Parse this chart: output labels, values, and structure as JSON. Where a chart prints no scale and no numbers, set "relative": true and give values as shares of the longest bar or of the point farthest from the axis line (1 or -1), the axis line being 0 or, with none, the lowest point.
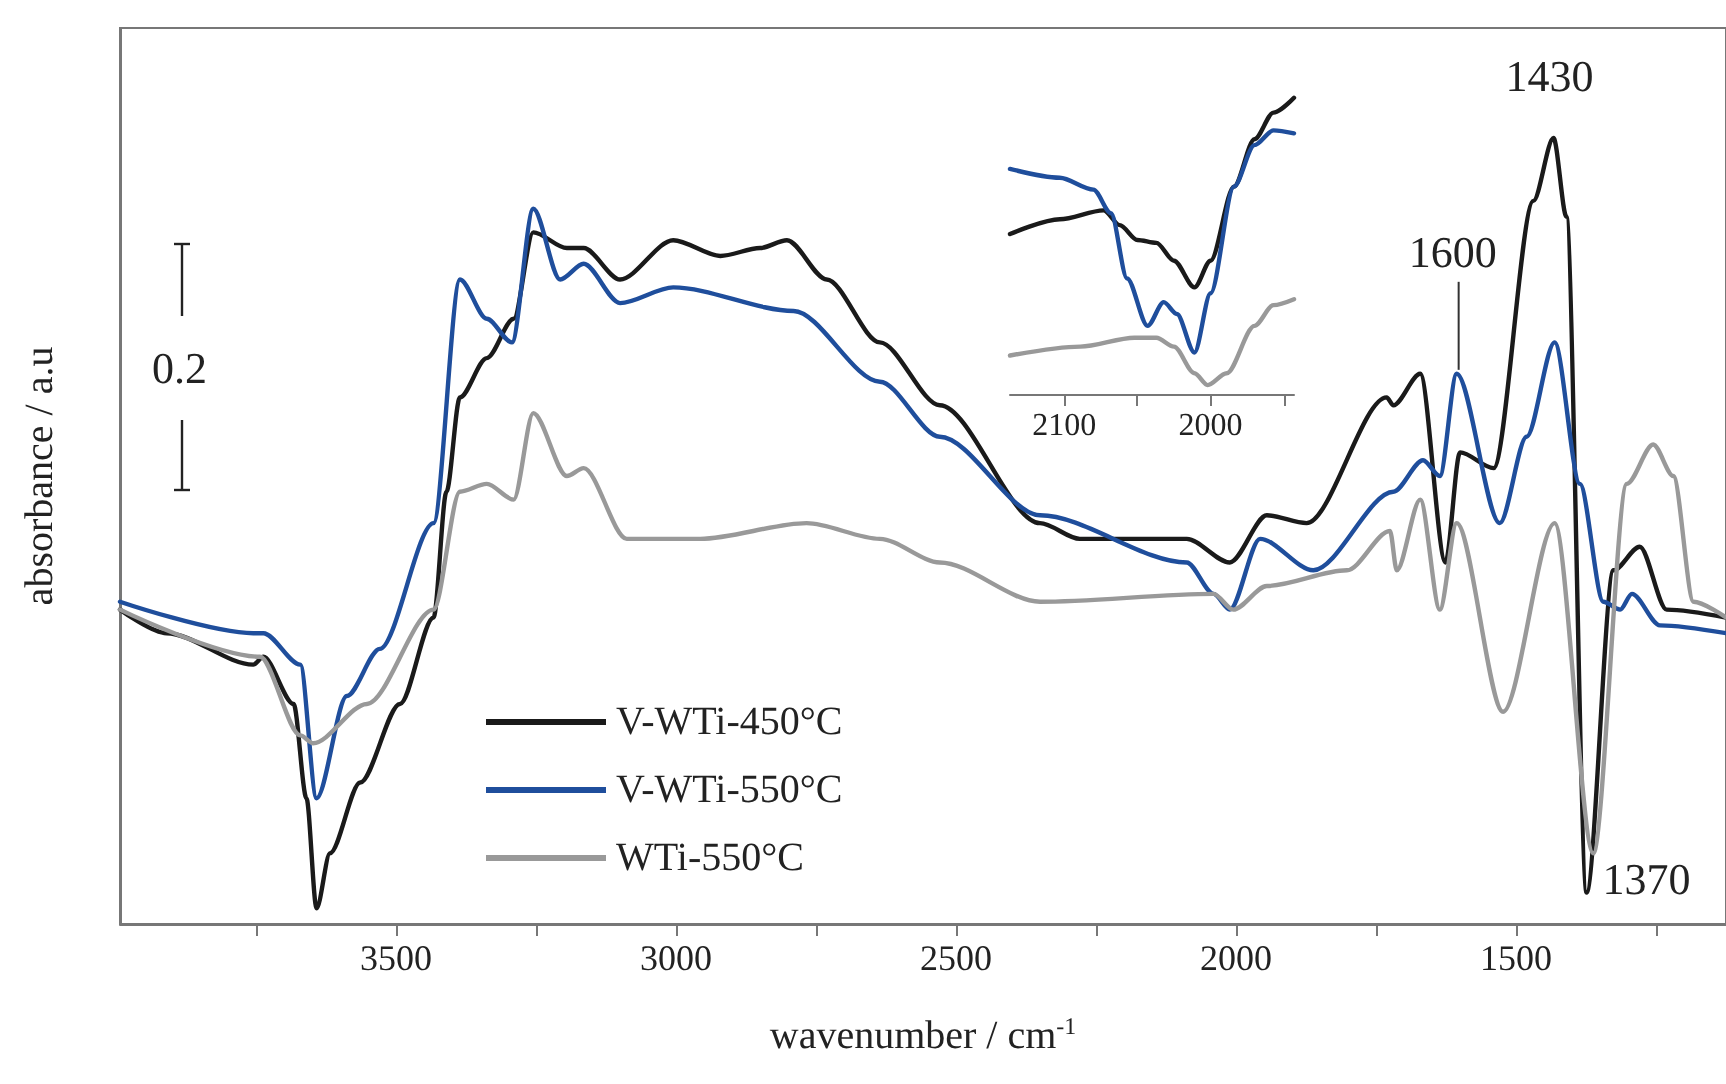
{
  "chart_data": [
    {
      "type": "line",
      "relative": true,
      "xlabel": "wavenumber / cm$^{-1}$",
      "ylabel": "absorbance / a.u",
      "xlim": [
        3993,
        1125
      ],
      "xticks": [
        {
          "value": 3750,
          "label": null
        },
        3500,
        {
          "value": 3250,
          "label": null
        },
        3000,
        {
          "value": 2750,
          "label": null
        },
        2500,
        {
          "value": 2250,
          "label": null
        },
        2000,
        {
          "value": 1750,
          "label": null
        },
        1500,
        {
          "value": 1250,
          "label": null
        }
      ],
      "tick_labels": "x",
      "grid": false,
      "legend": "bottom",
      "marker": "none",
      "line_style": "solid",
      "annotations": [
        "0.2",
        {
          "text": "1430",
          "x": 1433,
          "y": 1.0
        },
        {
          "text": "1600",
          "x": 1606,
          "y": 0.7
        },
        {
          "text": "1370",
          "x": 1374,
          "y": 0.04
        }
      ],
      "series": [
        {
          "name": "V-WTi-450°C",
          "color": "#1a1a1a",
          "x": [
            3993,
            3910,
            3755,
            3737,
            3683,
            3660,
            3642,
            3618,
            3564,
            3493,
            3433,
            3410,
            3386,
            3338,
            3290,
            3255,
            3195,
            3165,
            3100,
            3005,
            2921,
            2850,
            2802,
            2731,
            2636,
            2529,
            2350,
            2279,
            2088,
            2011,
            1945,
            1874,
            1731,
            1719,
            1671,
            1626,
            1600,
            1540,
            1469,
            1433,
            1410,
            1374,
            1326,
            1279,
            1231,
            1125
          ],
          "values": [
            0.4,
            0.37,
            0.33,
            0.34,
            0.28,
            0.16,
            0.02,
            0.09,
            0.18,
            0.28,
            0.39,
            0.55,
            0.67,
            0.72,
            0.77,
            0.88,
            0.86,
            0.86,
            0.82,
            0.87,
            0.85,
            0.86,
            0.87,
            0.82,
            0.74,
            0.66,
            0.51,
            0.49,
            0.49,
            0.46,
            0.52,
            0.51,
            0.67,
            0.66,
            0.7,
            0.46,
            0.6,
            0.58,
            0.92,
            1.0,
            0.9,
            0.04,
            0.45,
            0.48,
            0.4,
            0.39
          ]
        },
        {
          "name": "V-WTi-550°C",
          "color": "#1f4e9c",
          "x": [
            3993,
            3755,
            3737,
            3671,
            3642,
            3588,
            3529,
            3433,
            3386,
            3338,
            3293,
            3255,
            3207,
            3165,
            3100,
            3005,
            2790,
            2636,
            2529,
            2350,
            2088,
            2040,
            2011,
            1957,
            1862,
            1719,
            1666,
            1636,
            1606,
            1529,
            1481,
            1431,
            1386,
            1344,
            1314,
            1293,
            1243,
            1125
          ],
          "values": [
            0.41,
            0.37,
            0.37,
            0.33,
            0.16,
            0.29,
            0.35,
            0.51,
            0.82,
            0.77,
            0.74,
            0.91,
            0.82,
            0.84,
            0.79,
            0.81,
            0.78,
            0.69,
            0.62,
            0.52,
            0.46,
            0.42,
            0.4,
            0.49,
            0.45,
            0.55,
            0.59,
            0.57,
            0.7,
            0.51,
            0.62,
            0.74,
            0.56,
            0.41,
            0.4,
            0.42,
            0.38,
            0.37
          ]
        },
        {
          "name": "WTi-550°C",
          "color": "#999999",
          "x": [
            3993,
            3743,
            3671,
            3648,
            3552,
            3433,
            3386,
            3338,
            3290,
            3255,
            3195,
            3165,
            3088,
            2957,
            2767,
            2636,
            2529,
            2350,
            2040,
            2005,
            1945,
            1802,
            1725,
            1713,
            1671,
            1636,
            1606,
            1523,
            1431,
            1362,
            1302,
            1255,
            1219,
            1183,
            1125
          ],
          "values": [
            0.4,
            0.34,
            0.24,
            0.23,
            0.28,
            0.4,
            0.55,
            0.56,
            0.54,
            0.65,
            0.57,
            0.58,
            0.49,
            0.49,
            0.51,
            0.49,
            0.46,
            0.41,
            0.42,
            0.4,
            0.43,
            0.45,
            0.5,
            0.45,
            0.54,
            0.4,
            0.51,
            0.27,
            0.51,
            0.09,
            0.56,
            0.61,
            0.57,
            0.41,
            0.39
          ]
        }
      ]
    },
    {
      "type": "line",
      "relative": true,
      "xlim": [
        2137,
        1943
      ],
      "xticks": [
        2100,
        {
          "value": 2050,
          "label": null
        },
        2000,
        {
          "value": 1950,
          "label": null
        }
      ],
      "tick_labels": "x",
      "grid": false,
      "legend": false,
      "marker": "none",
      "line_style": "solid",
      "series": [
        {
          "color": "#1a1a1a",
          "x": [
            2137,
            2103,
            2073,
            2062,
            2050,
            2037,
            2025,
            2011,
            2000,
            1984,
            1970,
            1957,
            1943
          ],
          "values": [
            0.54,
            0.59,
            0.62,
            0.57,
            0.52,
            0.51,
            0.45,
            0.36,
            0.45,
            0.7,
            0.86,
            0.95,
            1.0
          ]
        },
        {
          "color": "#1f4e9c",
          "x": [
            2137,
            2103,
            2080,
            2068,
            2057,
            2043,
            2032,
            2023,
            2011,
            2000,
            1984,
            1970,
            1957,
            1943
          ],
          "values": [
            0.76,
            0.73,
            0.69,
            0.61,
            0.39,
            0.23,
            0.31,
            0.27,
            0.14,
            0.34,
            0.7,
            0.84,
            0.89,
            0.88
          ]
        },
        {
          "color": "#999999",
          "x": [
            2137,
            2089,
            2052,
            2037,
            2025,
            2011,
            2002,
            1989,
            1970,
            1957,
            1943
          ],
          "values": [
            0.13,
            0.16,
            0.19,
            0.19,
            0.16,
            0.07,
            0.03,
            0.07,
            0.23,
            0.3,
            0.32
          ]
        }
      ]
    }
  ]
}
